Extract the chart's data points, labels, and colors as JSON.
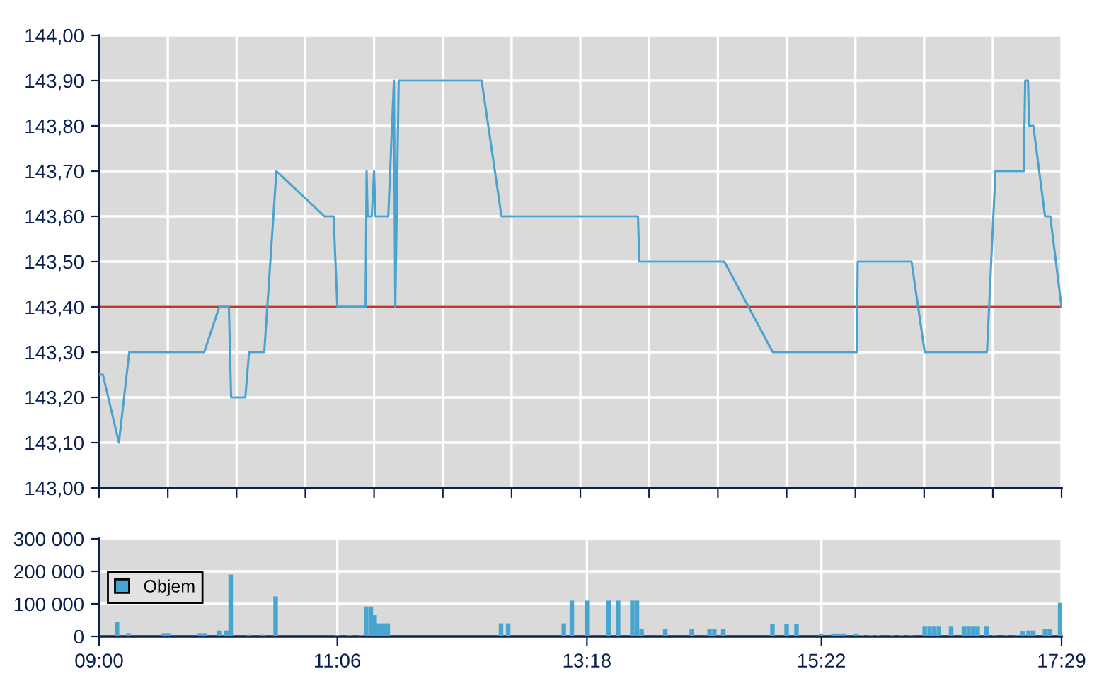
{
  "chart_data": [
    {
      "type": "line",
      "xlim": [
        9.0,
        17.4833
      ],
      "xticks": [
        {
          "value": 9.0,
          "label": null
        },
        {
          "value": 9.606,
          "label": null
        },
        {
          "value": 10.212,
          "label": null
        },
        {
          "value": 10.818,
          "label": null
        },
        {
          "value": 11.424,
          "label": null
        },
        {
          "value": 12.03,
          "label": null
        },
        {
          "value": 12.636,
          "label": null
        },
        {
          "value": 13.242,
          "label": null
        },
        {
          "value": 13.848,
          "label": null
        },
        {
          "value": 14.454,
          "label": null
        },
        {
          "value": 15.06,
          "label": null
        },
        {
          "value": 15.666,
          "label": null
        },
        {
          "value": 16.272,
          "label": null
        },
        {
          "value": 16.878,
          "label": null
        },
        {
          "value": 17.4833,
          "label": null
        }
      ],
      "ylim": [
        143.0,
        144.0
      ],
      "yticks": [
        {
          "value": 143.0,
          "label": "143,00"
        },
        {
          "value": 143.1,
          "label": "143,10"
        },
        {
          "value": 143.2,
          "label": "143,20"
        },
        {
          "value": 143.3,
          "label": "143,30"
        },
        {
          "value": 143.4,
          "label": "143,40"
        },
        {
          "value": 143.5,
          "label": "143,50"
        },
        {
          "value": 143.6,
          "label": "143,60"
        },
        {
          "value": 143.7,
          "label": "143,70"
        },
        {
          "value": 143.8,
          "label": "143,80"
        },
        {
          "value": 143.9,
          "label": "143,90"
        },
        {
          "value": 144.0,
          "label": "144,00"
        }
      ],
      "tick_labels": "y",
      "grid": true,
      "legend": false,
      "marker": "none",
      "line_style": "solid",
      "ref_lines": [
        {
          "axis": "y",
          "value": 143.4,
          "color": "#c0392b"
        }
      ],
      "series": [
        {
          "color": "#4aa3cf",
          "x": [
            9.0,
            9.034,
            9.175,
            9.266,
            9.927,
            10.06,
            10.144,
            10.164,
            10.289,
            10.322,
            10.456,
            10.563,
            10.987,
            11.067,
            11.1,
            11.349,
            11.358,
            11.367,
            11.404,
            11.424,
            11.437,
            11.549,
            11.599,
            11.611,
            11.641,
            12.372,
            12.547,
            13.75,
            13.762,
            14.511,
            14.938,
            15.678,
            15.687,
            16.161,
            16.277,
            16.826,
            16.901,
            17.15,
            17.163,
            17.188,
            17.197,
            17.235,
            17.338,
            17.384,
            17.483
          ],
          "values": [
            143.25,
            143.25,
            143.1,
            143.3,
            143.3,
            143.4,
            143.4,
            143.2,
            143.2,
            143.3,
            143.3,
            143.7,
            143.6,
            143.6,
            143.4,
            143.4,
            143.7,
            143.6,
            143.6,
            143.7,
            143.6,
            143.6,
            143.9,
            143.4,
            143.9,
            143.9,
            143.6,
            143.6,
            143.5,
            143.5,
            143.3,
            143.3,
            143.5,
            143.5,
            143.3,
            143.3,
            143.7,
            143.7,
            143.9,
            143.9,
            143.8,
            143.8,
            143.6,
            143.6,
            143.4
          ]
        }
      ]
    },
    {
      "type": "bar",
      "xlim": [
        9.0,
        17.4833
      ],
      "xticks": [
        {
          "value": 9.0,
          "label": "09:00"
        },
        {
          "value": 11.1,
          "label": "11:06"
        },
        {
          "value": 13.3,
          "label": "13:18"
        },
        {
          "value": 15.3667,
          "label": "15:22"
        },
        {
          "value": 17.4833,
          "label": "17:29"
        }
      ],
      "ylim": [
        0,
        300000
      ],
      "yticks": [
        {
          "value": 0,
          "label": "0"
        },
        {
          "value": 100000,
          "label": "100 000"
        },
        {
          "value": 200000,
          "label": "200 000"
        },
        {
          "value": 300000,
          "label": "300 000"
        }
      ],
      "grid": true,
      "legend": "center left",
      "series": [
        {
          "name": "Objem",
          "color": "#46a6d0",
          "x": [
            9.158,
            9.258,
            9.57,
            9.611,
            9.89,
            9.932,
            10.057,
            10.123,
            10.16,
            10.322,
            10.443,
            10.556,
            11.1,
            11.204,
            11.308,
            11.354,
            11.395,
            11.429,
            11.466,
            11.508,
            11.545,
            12.543,
            12.606,
            13.096,
            13.167,
            13.3,
            13.491,
            13.575,
            13.7,
            13.741,
            13.782,
            13.991,
            14.224,
            14.381,
            14.423,
            14.502,
            14.935,
            15.06,
            15.147,
            15.363,
            15.471,
            15.516,
            15.562,
            15.675,
            15.721,
            15.803,
            15.87,
            15.986,
            16.074,
            16.152,
            16.277,
            16.32,
            16.361,
            16.402,
            16.51,
            16.623,
            16.664,
            16.706,
            16.744,
            16.822,
            16.893,
            16.993,
            17.093,
            17.143,
            17.193,
            17.234,
            17.338,
            17.38,
            17.471
          ],
          "values": [
            45000,
            10000,
            10000,
            10000,
            10000,
            10000,
            18000,
            18000,
            190000,
            5000,
            5000,
            123000,
            4000,
            4000,
            4000,
            92000,
            92000,
            65000,
            40000,
            40000,
            40000,
            40000,
            40000,
            40000,
            110000,
            110000,
            110000,
            110000,
            110000,
            110000,
            23000,
            23000,
            23000,
            23000,
            23000,
            23000,
            37000,
            37000,
            37000,
            9000,
            9000,
            9000,
            9000,
            9000,
            4000,
            4000,
            4000,
            4000,
            4000,
            4000,
            32000,
            32000,
            32000,
            32000,
            32000,
            32000,
            32000,
            32000,
            32000,
            32000,
            4000,
            4000,
            4000,
            15000,
            18000,
            18000,
            22000,
            22000,
            103000
          ]
        }
      ]
    }
  ]
}
